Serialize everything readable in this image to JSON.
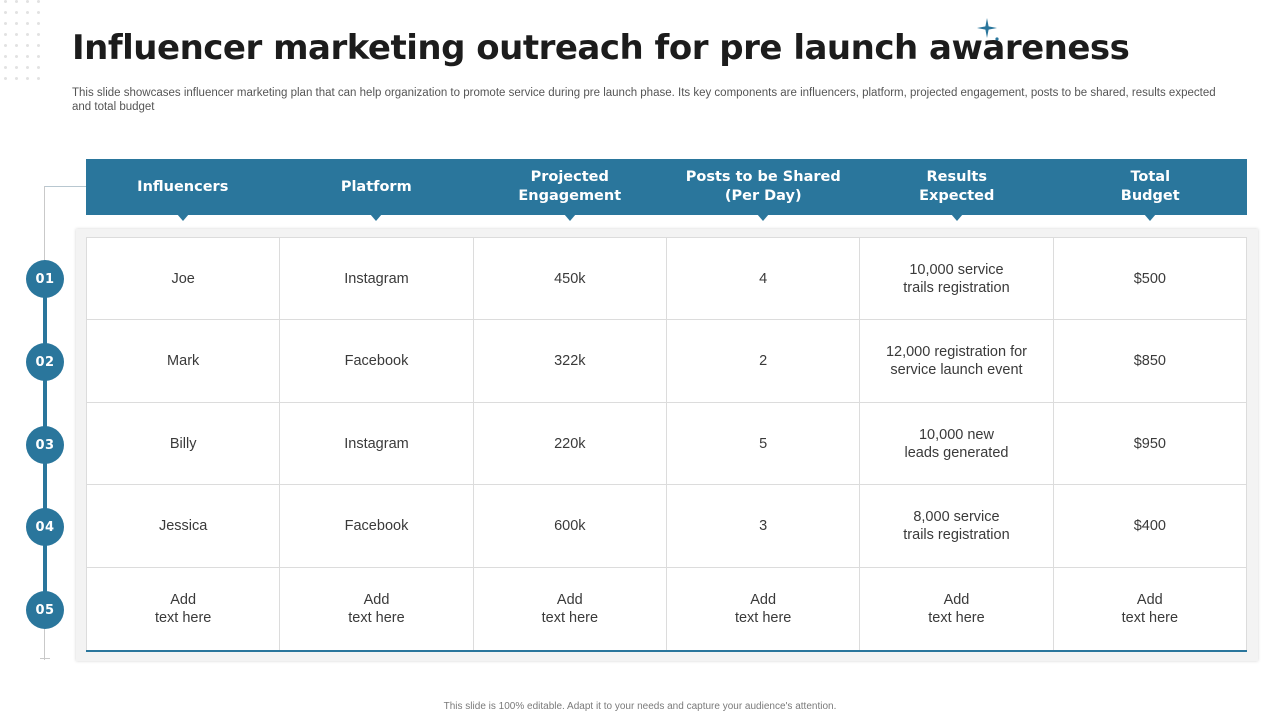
{
  "title": "Influencer marketing outreach for pre launch awareness",
  "subtitle": "This slide showcases influencer marketing plan that can help organization to promote service during pre launch phase. Its key components are influencers, platform, projected engagement, posts to be shared, results expected and total budget",
  "accent_color": "#2a769c",
  "columns": [
    "Influencers",
    "Platform",
    "Projected\nEngagement",
    "Posts to be Shared\n(Per Day)",
    "Results\nExpected",
    "Total\nBudget"
  ],
  "rows": [
    {
      "number": "01",
      "cells": [
        "Joe",
        "Instagram",
        "450k",
        "4",
        "10,000 service\ntrails registration",
        "$500"
      ]
    },
    {
      "number": "02",
      "cells": [
        "Mark",
        "Facebook",
        "322k",
        "2",
        "12,000 registration for\nservice launch event",
        "$850"
      ]
    },
    {
      "number": "03",
      "cells": [
        "Billy",
        "Instagram",
        "220k",
        "5",
        "10,000 new\nleads generated",
        "$950"
      ]
    },
    {
      "number": "04",
      "cells": [
        "Jessica",
        "Facebook",
        "600k",
        "3",
        "8,000 service\ntrails registration",
        "$400"
      ]
    },
    {
      "number": "05",
      "cells": [
        "Add\ntext here",
        "Add\ntext here",
        "Add\ntext here",
        "Add\ntext here",
        "Add\ntext here",
        "Add\ntext here"
      ]
    }
  ],
  "footer": "This slide is 100% editable. Adapt it to your needs and capture your audience's attention."
}
